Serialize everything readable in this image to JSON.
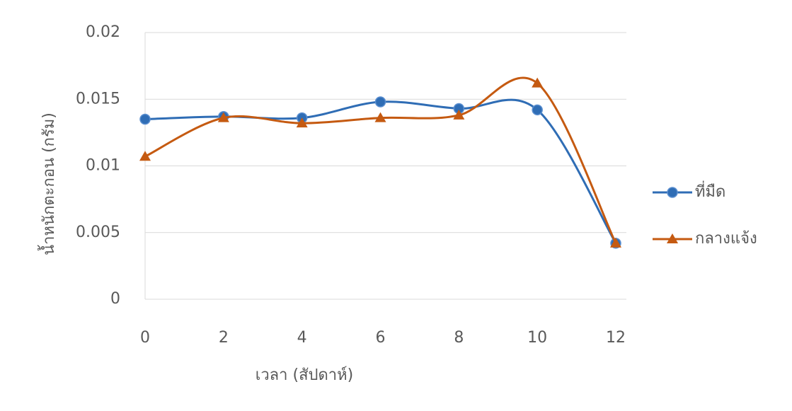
{
  "chart_data": {
    "type": "line",
    "x": [
      0,
      2,
      4,
      6,
      8,
      10,
      12
    ],
    "series": [
      {
        "name": "ที่มืด",
        "color": "#2f6db5",
        "marker": "circle",
        "values": [
          0.0135,
          0.0137,
          0.0136,
          0.0148,
          0.0143,
          0.0142,
          0.0042
        ]
      },
      {
        "name": "กลางแจ้ง",
        "color": "#c55a11",
        "marker": "triangle",
        "values": [
          0.0107,
          0.0136,
          0.0132,
          0.0136,
          0.0138,
          0.0162,
          0.0042
        ]
      }
    ],
    "xlabel": "เวลา (สัปดาห์)",
    "ylabel": "น้ำหนักตะกอน (กรัม)",
    "xlim": [
      0,
      12
    ],
    "xticks": [
      0,
      2,
      4,
      6,
      8,
      10,
      12
    ],
    "ylim": [
      0,
      0.02
    ],
    "yticks": [
      0,
      0.005,
      0.01,
      0.015,
      0.02
    ],
    "grid": true,
    "smooth": true,
    "legend": "right"
  }
}
